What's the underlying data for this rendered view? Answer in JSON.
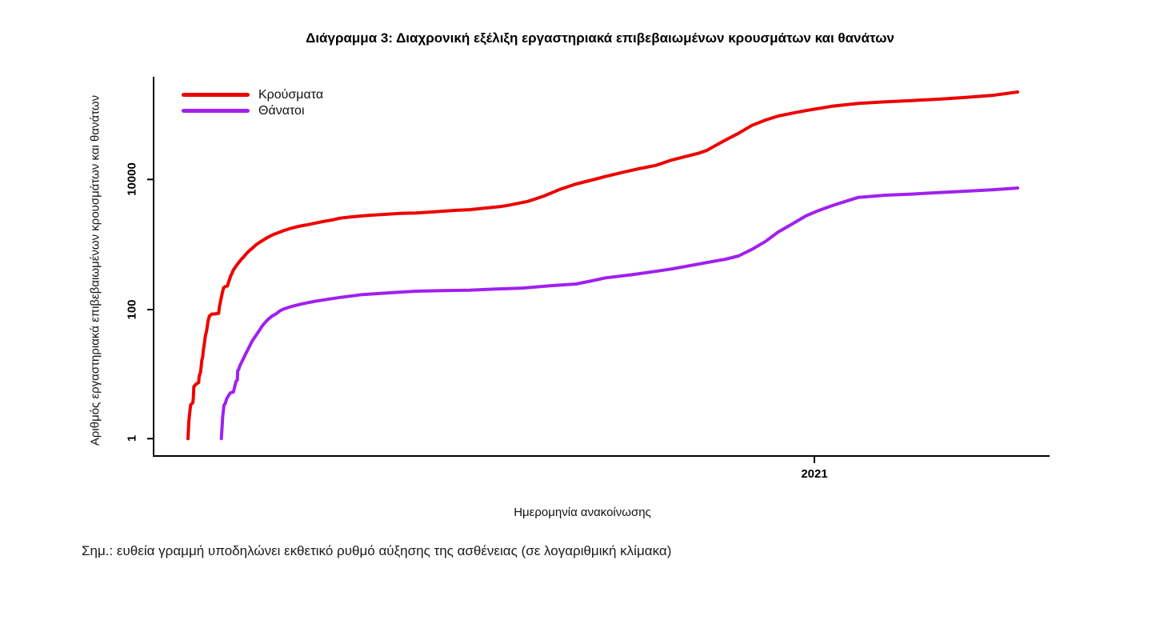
{
  "note": {
    "text": "Σημ.: ευθεία γραμμή υποδηλώνει εκθετικό ρυθμό αύξησης της ασθένειας (σε λογαριθμική κλίμακα)"
  },
  "chart_data": {
    "type": "line",
    "title": "Διάγραμμα 3: Διαχρονική εξέλιξη εργαστηριακά επιβεβαιωμένων κρουσμάτων και θανάτων",
    "xlabel": "Ημερομηνία ανακοίνωσης",
    "ylabel": "Αριθμός εργαστηριακά επιβεβαιωμένων κρουσμάτων και θανάτων",
    "yscale": "log",
    "ylim": [
      1,
      370000
    ],
    "grid": false,
    "legend_position": "top-left",
    "axis_color": "#000000",
    "y_ticks": [
      {
        "label": "1",
        "value": 1
      },
      {
        "label": "100",
        "value": 100
      },
      {
        "label": "10000",
        "value": 10000
      }
    ],
    "x_ticks": [
      {
        "label": "2021",
        "frac": 0.7375
      }
    ],
    "series": [
      {
        "name": "Κρούσματα",
        "color": "#ee0000",
        "points": [
          [
            0.0384,
            1
          ],
          [
            0.0393,
            1.8
          ],
          [
            0.0402,
            2.4
          ],
          [
            0.0413,
            3.3
          ],
          [
            0.0438,
            3.6
          ],
          [
            0.0444,
            4.3
          ],
          [
            0.0449,
            6.3
          ],
          [
            0.0473,
            6.9
          ],
          [
            0.0503,
            7.3
          ],
          [
            0.0509,
            9.2
          ],
          [
            0.0522,
            10.3
          ],
          [
            0.0533,
            13.4
          ],
          [
            0.0538,
            16.2
          ],
          [
            0.0547,
            17.8
          ],
          [
            0.0556,
            23.7
          ],
          [
            0.0566,
            28.6
          ],
          [
            0.0578,
            38
          ],
          [
            0.0592,
            46
          ],
          [
            0.0607,
            64
          ],
          [
            0.0622,
            77
          ],
          [
            0.0652,
            83
          ],
          [
            0.0681,
            83
          ],
          [
            0.0726,
            85
          ],
          [
            0.0735,
            108
          ],
          [
            0.0747,
            130
          ],
          [
            0.0765,
            172
          ],
          [
            0.078,
            208
          ],
          [
            0.0795,
            218
          ],
          [
            0.0824,
            224
          ],
          [
            0.0845,
            276
          ],
          [
            0.086,
            319
          ],
          [
            0.0875,
            350
          ],
          [
            0.089,
            396
          ],
          [
            0.0905,
            422
          ],
          [
            0.0926,
            465
          ],
          [
            0.0949,
            512
          ],
          [
            0.098,
            578
          ],
          [
            0.1009,
            636
          ],
          [
            0.1038,
            711
          ],
          [
            0.1069,
            783
          ],
          [
            0.1104,
            859
          ],
          [
            0.1143,
            964
          ],
          [
            0.1188,
            1060
          ],
          [
            0.1232,
            1160
          ],
          [
            0.1277,
            1260
          ],
          [
            0.1337,
            1390
          ],
          [
            0.1396,
            1490
          ],
          [
            0.1455,
            1600
          ],
          [
            0.1545,
            1750
          ],
          [
            0.1634,
            1870
          ],
          [
            0.1723,
            1970
          ],
          [
            0.1813,
            2090
          ],
          [
            0.1902,
            2210
          ],
          [
            0.1991,
            2320
          ],
          [
            0.208,
            2480
          ],
          [
            0.2214,
            2600
          ],
          [
            0.2393,
            2730
          ],
          [
            0.2571,
            2830
          ],
          [
            0.275,
            2940
          ],
          [
            0.2929,
            2970
          ],
          [
            0.3152,
            3120
          ],
          [
            0.3375,
            3270
          ],
          [
            0.3527,
            3350
          ],
          [
            0.3688,
            3520
          ],
          [
            0.3866,
            3730
          ],
          [
            0.3973,
            3950
          ],
          [
            0.4179,
            4500
          ],
          [
            0.4357,
            5430
          ],
          [
            0.4536,
            6870
          ],
          [
            0.4714,
            8320
          ],
          [
            0.4893,
            9590
          ],
          [
            0.5071,
            11100
          ],
          [
            0.525,
            12700
          ],
          [
            0.5429,
            14400
          ],
          [
            0.5607,
            16100
          ],
          [
            0.5786,
            19500
          ],
          [
            0.6081,
            24700
          ],
          [
            0.617,
            27200
          ],
          [
            0.6384,
            39600
          ],
          [
            0.6527,
            50000
          ],
          [
            0.6679,
            66400
          ],
          [
            0.683,
            80300
          ],
          [
            0.6973,
            92500
          ],
          [
            0.7125,
            102000
          ],
          [
            0.7277,
            112000
          ],
          [
            0.7571,
            131000
          ],
          [
            0.7866,
            145000
          ],
          [
            0.817,
            153000
          ],
          [
            0.8464,
            160000
          ],
          [
            0.8759,
            168000
          ],
          [
            0.9063,
            179000
          ],
          [
            0.9357,
            192000
          ],
          [
            0.9643,
            217000
          ]
        ]
      },
      {
        "name": "Θάνατοι",
        "color": "#a020f0",
        "points": [
          [
            0.0756,
            1
          ],
          [
            0.0771,
            2.2
          ],
          [
            0.0786,
            3.3
          ],
          [
            0.0801,
            3.5
          ],
          [
            0.0815,
            4.1
          ],
          [
            0.0845,
            4.8
          ],
          [
            0.086,
            5.1
          ],
          [
            0.089,
            5.2
          ],
          [
            0.0905,
            6.3
          ],
          [
            0.092,
            7.6
          ],
          [
            0.0935,
            8
          ],
          [
            0.0938,
            11.1
          ],
          [
            0.0949,
            11.6
          ],
          [
            0.0964,
            13.4
          ],
          [
            0.098,
            14.8
          ],
          [
            0.0994,
            16.2
          ],
          [
            0.1009,
            17.8
          ],
          [
            0.1038,
            21.6
          ],
          [
            0.1069,
            26.1
          ],
          [
            0.1098,
            31.5
          ],
          [
            0.1128,
            36.2
          ],
          [
            0.1158,
            41.7
          ],
          [
            0.1188,
            48.2
          ],
          [
            0.1217,
            55.5
          ],
          [
            0.1247,
            62
          ],
          [
            0.1277,
            68.4
          ],
          [
            0.1321,
            77
          ],
          [
            0.1366,
            83.5
          ],
          [
            0.1411,
            93
          ],
          [
            0.1455,
            99.5
          ],
          [
            0.1545,
            109
          ],
          [
            0.1634,
            117
          ],
          [
            0.1723,
            124
          ],
          [
            0.1813,
            131
          ],
          [
            0.1902,
            137
          ],
          [
            0.1991,
            143
          ],
          [
            0.208,
            149
          ],
          [
            0.233,
            165
          ],
          [
            0.2634,
            176
          ],
          [
            0.2929,
            186
          ],
          [
            0.3223,
            190
          ],
          [
            0.3527,
            193
          ],
          [
            0.3821,
            201
          ],
          [
            0.4116,
            208
          ],
          [
            0.442,
            225
          ],
          [
            0.4714,
            240
          ],
          [
            0.4893,
            269
          ],
          [
            0.5045,
            299
          ],
          [
            0.5339,
            334
          ],
          [
            0.5634,
            381
          ],
          [
            0.5786,
            411
          ],
          [
            0.6081,
            487
          ],
          [
            0.6232,
            531
          ],
          [
            0.6384,
            578
          ],
          [
            0.6527,
            648
          ],
          [
            0.6679,
            820
          ],
          [
            0.683,
            1090
          ],
          [
            0.6973,
            1520
          ],
          [
            0.7125,
            2010
          ],
          [
            0.7277,
            2670
          ],
          [
            0.742,
            3240
          ],
          [
            0.7571,
            3860
          ],
          [
            0.7723,
            4500
          ],
          [
            0.7866,
            5180
          ],
          [
            0.817,
            5590
          ],
          [
            0.8464,
            5810
          ],
          [
            0.8759,
            6140
          ],
          [
            0.9063,
            6440
          ],
          [
            0.9357,
            6760
          ],
          [
            0.9643,
            7210
          ]
        ]
      }
    ]
  }
}
